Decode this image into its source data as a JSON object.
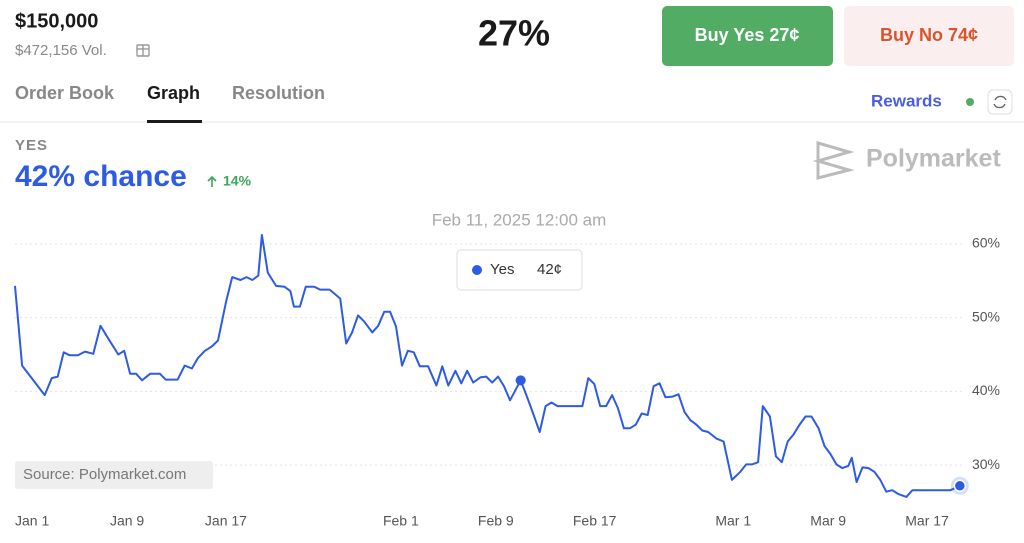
{
  "header": {
    "amount": "$150,000",
    "volume": "$472,156 Vol.",
    "percent": "27%",
    "buy_yes": "Buy Yes 27¢",
    "buy_no": "Buy No 74¢"
  },
  "tabs": [
    "Order Book",
    "Graph",
    "Resolution"
  ],
  "rewards": "Rewards",
  "outcome": {
    "label": "YES",
    "chance": "42% chance",
    "change": "14%"
  },
  "brand": "Polymarket",
  "source": "Source: Polymarket.com",
  "chart_data": {
    "type": "line",
    "x": [
      0,
      0.6,
      2.5,
      3.1,
      3.6,
      4.1,
      4.6,
      5.3,
      5.9,
      6.6,
      7.2,
      8.0,
      8.7,
      9.2,
      9.7,
      10.2,
      10.7,
      11.4,
      12.2,
      12.7,
      13.7,
      14.3,
      14.9,
      15.4,
      16.0,
      16.6,
      17.1,
      17.8,
      18.3,
      19.0,
      19.5,
      20.0,
      20.5,
      20.8,
      21.3,
      22.0,
      22.7,
      23.2,
      23.5,
      24.0,
      24.5,
      25.2,
      25.7,
      26.5,
      27.4,
      27.9,
      28.4,
      28.9,
      29.4,
      30.1,
      30.6,
      31.1,
      31.6,
      32.1,
      32.6,
      33.1,
      33.6,
      34.1,
      34.8,
      35.5,
      36.0,
      36.5,
      37.1,
      37.6,
      38.1,
      38.6,
      39.2,
      39.7,
      40.2,
      40.7,
      41.2,
      41.7,
      42.6,
      43.4,
      44.2,
      44.7,
      45.2,
      45.7,
      46.8,
      47.8,
      48.3,
      48.8,
      49.3,
      49.8,
      50.3,
      50.8,
      51.3,
      51.8,
      52.3,
      52.8,
      53.3,
      53.8,
      54.3,
      54.8,
      55.4,
      55.9,
      56.4,
      56.9,
      57.4,
      57.9,
      58.4,
      59.1,
      59.7,
      60.4,
      61.1,
      61.6,
      62.1,
      62.6,
      63.0,
      63.6,
      64.1,
      64.6,
      65.1,
      65.6,
      66.1,
      66.6,
      67.1,
      67.7,
      68.2,
      68.7,
      69.2,
      69.7,
      70.2,
      70.5,
      70.9,
      71.4,
      71.9,
      72.4,
      72.9,
      73.4,
      73.9,
      74.4,
      75.1,
      75.6,
      77.1,
      78.8,
      79.6
    ],
    "series": [
      {
        "name": "Yes",
        "color": "#2d5be3",
        "values": [
          54.3,
          43.5,
          39.5,
          41.8,
          42.0,
          45.3,
          44.9,
          44.9,
          45.4,
          45.1,
          48.9,
          46.8,
          45.0,
          45.5,
          42.4,
          42.4,
          41.5,
          42.4,
          42.4,
          41.6,
          41.6,
          43.5,
          43.1,
          44.5,
          45.5,
          46.1,
          46.9,
          52.3,
          55.5,
          55.1,
          55.5,
          55.1,
          55.7,
          61.2,
          56.1,
          54.3,
          54.2,
          53.6,
          51.5,
          51.5,
          54.2,
          54.2,
          53.8,
          53.8,
          52.6,
          46.5,
          48.0,
          50.3,
          49.5,
          48.0,
          48.9,
          50.8,
          50.8,
          48.8,
          43.5,
          45.5,
          45.3,
          43.4,
          43.4,
          40.8,
          43.4,
          40.8,
          42.8,
          41.1,
          42.8,
          41.2,
          41.9,
          42.0,
          41.2,
          42.0,
          40.7,
          38.8,
          41.5,
          38.1,
          34.5,
          38.0,
          38.5,
          38.0,
          38.0,
          38.0,
          41.8,
          41.0,
          38.0,
          38.0,
          39.5,
          37.7,
          35.0,
          35.0,
          35.5,
          37.0,
          36.8,
          40.7,
          41.1,
          39.2,
          39.3,
          39.6,
          37.2,
          36.1,
          35.5,
          34.7,
          34.5,
          33.6,
          33.2,
          28.0,
          29.1,
          30.1,
          30.1,
          30.4,
          38.0,
          36.6,
          31.2,
          30.4,
          33.2,
          34.2,
          35.5,
          36.6,
          36.6,
          35.0,
          32.6,
          31.5,
          30.1,
          29.6,
          29.9,
          31.0,
          27.7,
          29.7,
          29.6,
          29.1,
          28.0,
          26.4,
          26.6,
          26.1,
          25.7,
          26.6,
          26.6,
          26.6,
          27.2
        ]
      }
    ],
    "xlim": [
      0,
      80
    ],
    "xticks": [
      {
        "value": 0,
        "label": "Jan 1"
      },
      {
        "value": 8,
        "label": "Jan 9"
      },
      {
        "value": 16,
        "label": "Jan 17"
      },
      {
        "value": 31,
        "label": "Feb 1"
      },
      {
        "value": 39,
        "label": "Feb 9"
      },
      {
        "value": 47,
        "label": "Feb 17"
      },
      {
        "value": 59,
        "label": "Mar 1"
      },
      {
        "value": 67,
        "label": "Mar 9"
      },
      {
        "value": 75,
        "label": "Mar 17"
      }
    ],
    "ylim": [
      24,
      64
    ],
    "yticks": [
      {
        "value": 30,
        "label": "30%"
      },
      {
        "value": 40,
        "label": "40%"
      },
      {
        "value": 50,
        "label": "50%"
      },
      {
        "value": 60,
        "label": "60%"
      }
    ],
    "grid": true,
    "tooltip": {
      "date": "Feb 11, 2025 12:00 am",
      "label": "42¢"
    }
  }
}
